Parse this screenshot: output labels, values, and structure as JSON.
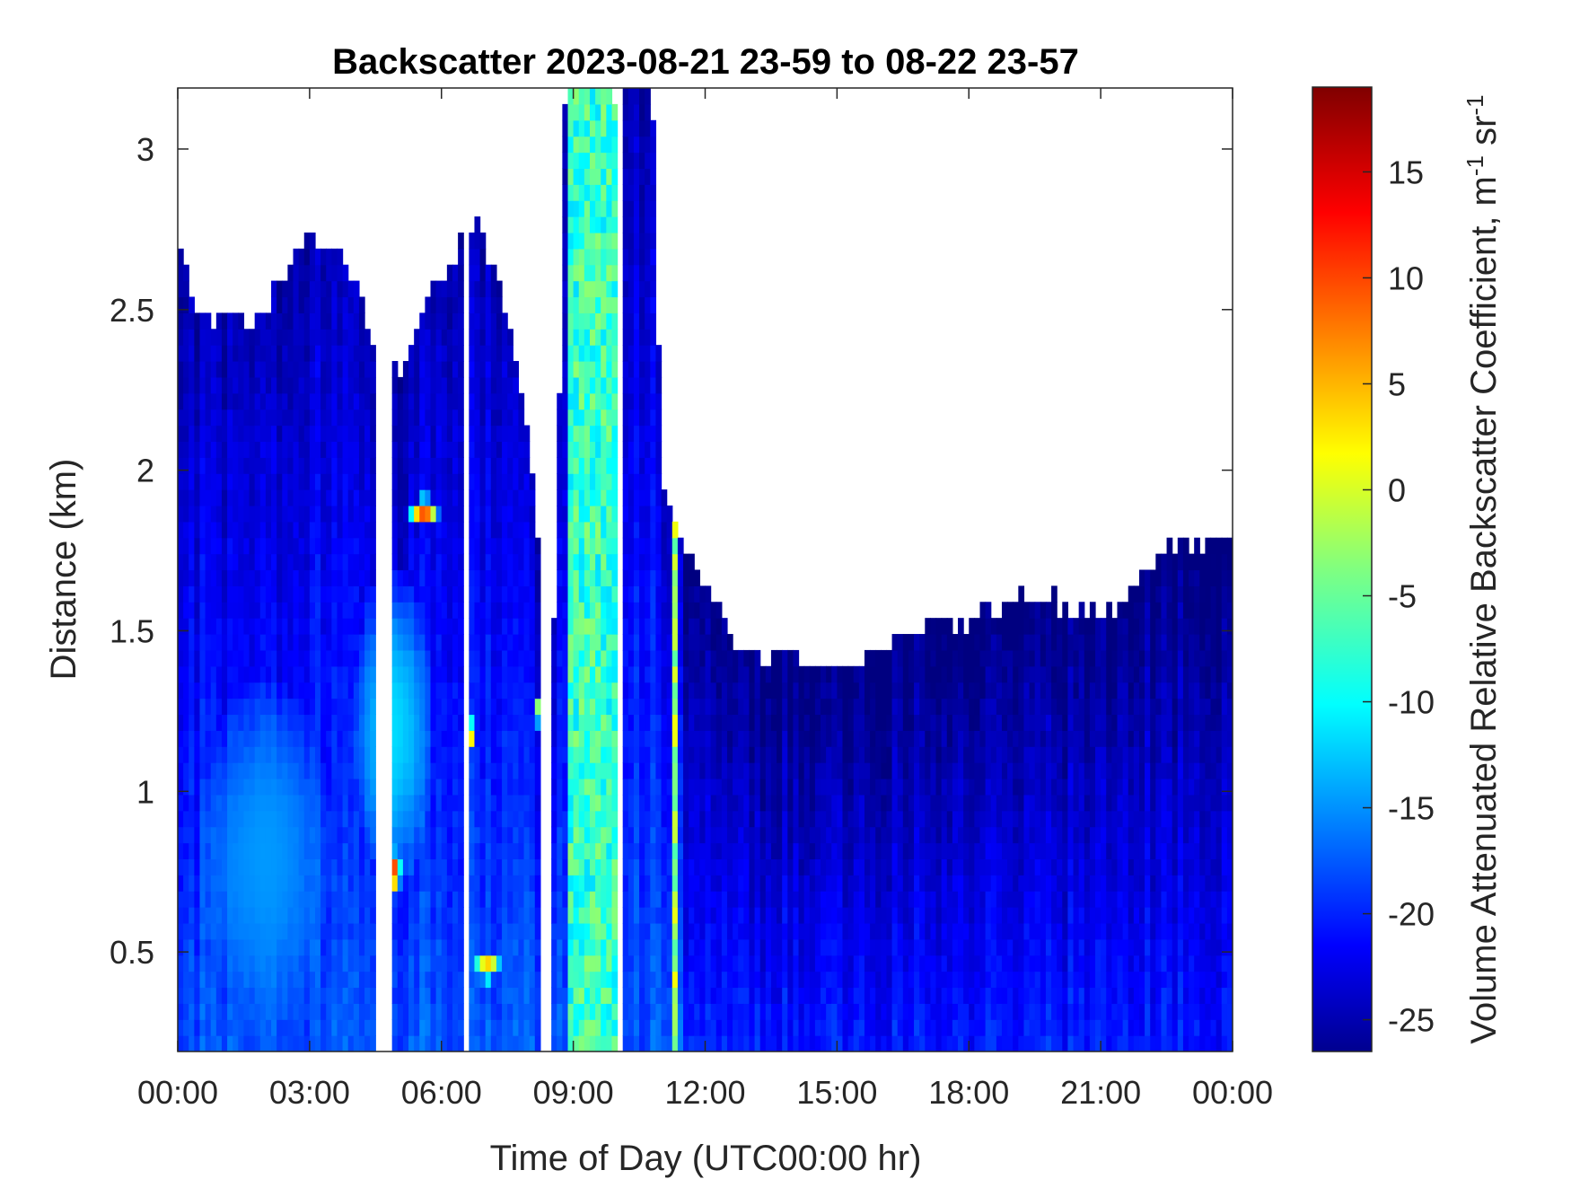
{
  "chart_data": {
    "type": "heatmap",
    "title": "Backscatter 2023-08-21 23-59 to 08-22 23-57",
    "xlabel": "Time of Day (UTC00:00 hr)",
    "ylabel": "Distance (km)",
    "colorbar_label": "Volume Attenuated Relative Backscatter Coefficient, m",
    "colorbar_unit_exp1": "-1",
    "colorbar_unit_mid": " sr",
    "colorbar_unit_exp2": "-1",
    "x_ticks": [
      "00:00",
      "03:00",
      "06:00",
      "09:00",
      "12:00",
      "15:00",
      "18:00",
      "21:00",
      "00:00"
    ],
    "x_tick_hours": [
      0,
      3,
      6,
      9,
      12,
      15,
      18,
      21,
      24
    ],
    "xlim_hours": [
      0,
      24
    ],
    "y_ticks": [
      "0.5",
      "1",
      "1.5",
      "2",
      "2.5",
      "3"
    ],
    "y_tick_values": [
      0.5,
      1,
      1.5,
      2,
      2.5,
      3
    ],
    "ylim": [
      0.19,
      3.19
    ],
    "colorbar_ticks": [
      "15",
      "10",
      "5",
      "0",
      "-5",
      "-10",
      "-15",
      "-20",
      "-25"
    ],
    "colorbar_tick_values": [
      15,
      10,
      5,
      0,
      -5,
      -10,
      -15,
      -20,
      -25
    ],
    "clim": [
      -26.5,
      19
    ],
    "colormap": "jet",
    "background_color": "#2a5cff",
    "top_boundary_km": [
      [
        0,
        2.7
      ],
      [
        0.2,
        2.6
      ],
      [
        0.4,
        2.5
      ],
      [
        0.8,
        2.45
      ],
      [
        1.2,
        2.45
      ],
      [
        1.6,
        2.45
      ],
      [
        2.0,
        2.5
      ],
      [
        2.4,
        2.6
      ],
      [
        2.8,
        2.7
      ],
      [
        3.2,
        2.72
      ],
      [
        3.6,
        2.7
      ],
      [
        4.0,
        2.6
      ],
      [
        4.4,
        2.4
      ],
      [
        4.8,
        2.3
      ],
      [
        5.2,
        2.35
      ],
      [
        5.6,
        2.5
      ],
      [
        6.0,
        2.6
      ],
      [
        6.4,
        2.7
      ],
      [
        6.8,
        2.75
      ],
      [
        7.2,
        2.6
      ],
      [
        7.6,
        2.4
      ],
      [
        8.0,
        2.1
      ],
      [
        8.2,
        1.8
      ],
      [
        8.4,
        1.6
      ],
      [
        8.6,
        1.5
      ],
      [
        8.8,
        3.19
      ],
      [
        10.8,
        3.19
      ],
      [
        11.0,
        2.0
      ],
      [
        11.4,
        1.8
      ],
      [
        11.8,
        1.7
      ],
      [
        12.2,
        1.6
      ],
      [
        12.6,
        1.5
      ],
      [
        13.0,
        1.45
      ],
      [
        13.6,
        1.42
      ],
      [
        14.2,
        1.4
      ],
      [
        14.8,
        1.38
      ],
      [
        15.4,
        1.4
      ],
      [
        16.0,
        1.45
      ],
      [
        16.6,
        1.5
      ],
      [
        17.2,
        1.55
      ],
      [
        17.8,
        1.5
      ],
      [
        18.4,
        1.55
      ],
      [
        19.0,
        1.6
      ],
      [
        19.6,
        1.6
      ],
      [
        20.2,
        1.58
      ],
      [
        20.8,
        1.55
      ],
      [
        21.4,
        1.6
      ],
      [
        22.0,
        1.7
      ],
      [
        22.6,
        1.75
      ],
      [
        23.2,
        1.78
      ],
      [
        24.0,
        1.8
      ]
    ],
    "gaps_hours": [
      [
        4.55,
        4.9
      ],
      [
        6.55,
        6.62
      ],
      [
        8.2,
        8.5
      ],
      [
        10.05,
        10.1
      ]
    ],
    "features": [
      {
        "center_hours": 4.85,
        "center_km": 0.75,
        "radius_hours": 0.25,
        "radius_km": 0.07,
        "value": 15
      },
      {
        "center_hours": 5.6,
        "center_km": 1.87,
        "radius_hours": 0.35,
        "radius_km": 0.05,
        "value": 10
      },
      {
        "center_hours": 7.05,
        "center_km": 0.46,
        "radius_hours": 0.3,
        "radius_km": 0.05,
        "value": 4
      },
      {
        "center_hours": 8.25,
        "center_km": 1.25,
        "radius_hours": 0.12,
        "radius_km": 0.05,
        "value": 6
      },
      {
        "center_hours": 6.65,
        "center_km": 1.17,
        "radius_hours": 0.06,
        "radius_km": 0.07,
        "value": 14
      },
      {
        "center_hours": 4.9,
        "center_km": 1.2,
        "radius_hours": 0.9,
        "radius_km": 0.5,
        "value": -11
      },
      {
        "center_hours": 2.0,
        "center_km": 0.8,
        "radius_hours": 1.5,
        "radius_km": 0.55,
        "value": -14
      }
    ],
    "vertical_bands": [
      {
        "start_hours": 8.9,
        "end_hours": 10.05,
        "value": -7
      },
      {
        "start_hours": 11.2,
        "end_hours": 11.35,
        "value": -2
      }
    ],
    "grid": false
  }
}
